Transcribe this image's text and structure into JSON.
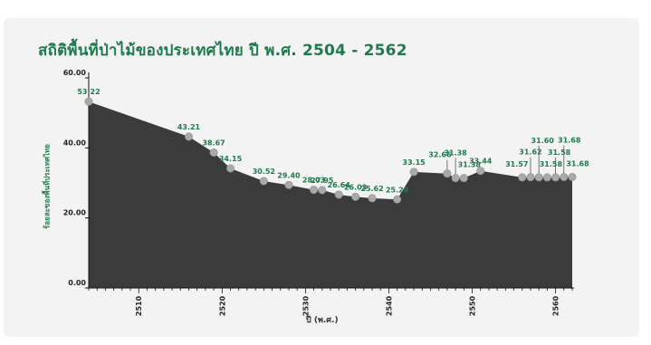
{
  "chart_data": {
    "type": "area",
    "title": "สถิติพื้นที่ป่าไม้ของประเทศไทย ปี พ.ศ. 2504 - 2562",
    "xlabel": "ปี (พ.ศ.)",
    "ylabel": "ร้อยละของพื้นที่ประเทศไทย",
    "xlim": [
      2504,
      2562
    ],
    "ylim": [
      0,
      60
    ],
    "xticks": [
      2510,
      2520,
      2530,
      2540,
      2550,
      2560
    ],
    "yticks": [
      "0.00",
      "20.00",
      "40.00",
      "60.00"
    ],
    "grid": false,
    "legend": "none",
    "series": [
      {
        "x": [
          2504,
          2516,
          2519,
          2521,
          2525,
          2528,
          2531,
          2532,
          2534,
          2536,
          2538,
          2541,
          2543,
          2547,
          2548,
          2549,
          2551,
          2556,
          2557,
          2558,
          2559,
          2560,
          2561,
          2562
        ],
        "values": [
          53.22,
          43.21,
          38.67,
          34.15,
          30.52,
          29.4,
          28.03,
          27.95,
          26.64,
          26.03,
          25.62,
          25.28,
          33.15,
          32.66,
          31.38,
          31.38,
          33.44,
          31.57,
          31.62,
          31.6,
          31.58,
          31.58,
          31.68,
          31.68
        ],
        "labels": [
          "53.22",
          "43.21",
          "38.67",
          "34.15",
          "30.52",
          "29.40",
          "28.03",
          "27.95",
          "26.64",
          "26.03",
          "25.62",
          "25.28",
          "33.15",
          "32.66",
          "31.38",
          "31.38",
          "33.44",
          "31.57",
          "31.62",
          "31.60",
          "31.58",
          "31.58",
          "31.68",
          "31.68"
        ]
      }
    ],
    "colors": {
      "fill": "#3b3b3b",
      "marker": "#a9a9a9",
      "label": "#1f7a4d",
      "axis": "#111111"
    }
  }
}
